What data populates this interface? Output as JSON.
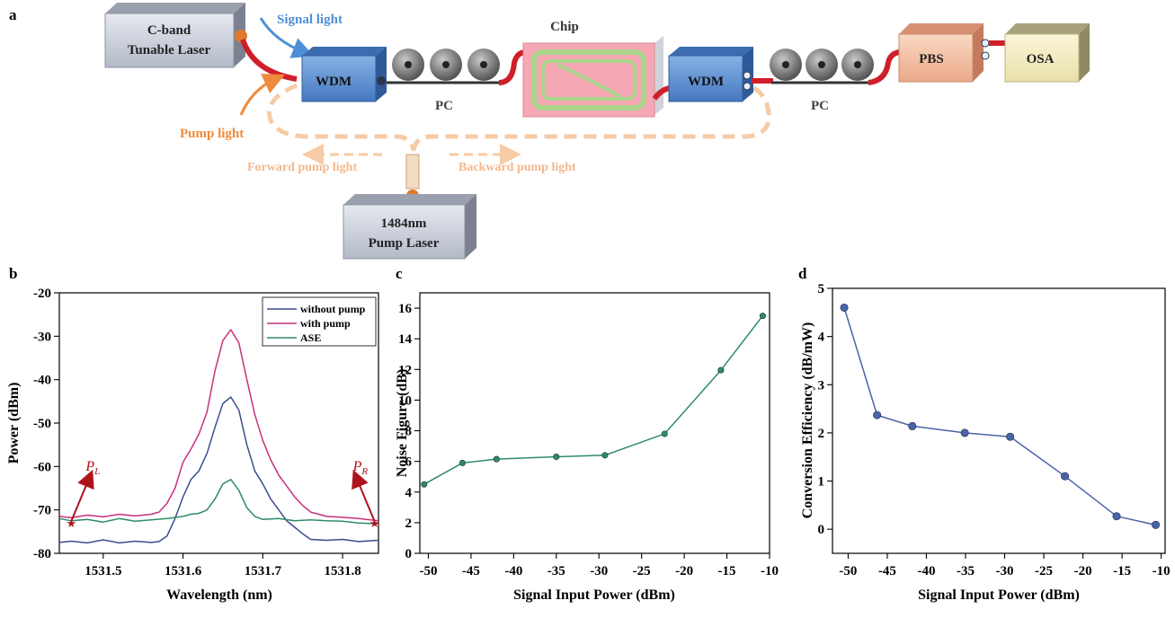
{
  "schematic": {
    "panel_letter": "a",
    "devices": {
      "laser": [
        "C-band",
        "Tunable Laser"
      ],
      "wdm_left": "WDM",
      "wdm_right": "WDM",
      "pc_left": "PC",
      "pc_right": "PC",
      "chip": "Chip",
      "pbs": "PBS",
      "osa": "OSA",
      "pump": [
        "1484nm",
        "Pump Laser"
      ]
    },
    "labels": {
      "signal_light": "Signal light",
      "pump_light": "Pump light",
      "forward": "Forward pump light",
      "backward": "Backward  pump light"
    },
    "colors": {
      "box_gray": "#c7ccd8",
      "wdm_blue": "#5b8fd1",
      "pbs_peach": "#f3c1a4",
      "osa_cream": "#f5efc3",
      "fiber_red": "#d01f2a",
      "signal_arrow": "#4d8fd6",
      "pump_arrow": "#ef8a3c",
      "pump_loop": "#f6cba6",
      "chip_pink": "#f5a8b3",
      "chip_green": "#a9d48c"
    }
  },
  "chart_data": [
    {
      "panel_letter": "b",
      "type": "line",
      "xlabel": "Wavelength (nm)",
      "ylabel": "Power (dBm)",
      "xlim": [
        1531.445,
        1531.845
      ],
      "ylim": [
        -80,
        -20
      ],
      "xticks": [
        1531.5,
        1531.6,
        1531.7,
        1531.8
      ],
      "xtick_labels": [
        "1531.5",
        "1531.6",
        "1531.7",
        "1531.8"
      ],
      "yticks": [
        -80,
        -70,
        -60,
        -50,
        -40,
        -30,
        -20
      ],
      "grid": false,
      "legend_position": "top-right",
      "series": [
        {
          "name": "without pump",
          "color": "#3a4d8f",
          "x": [
            1531.445,
            1531.46,
            1531.48,
            1531.5,
            1531.52,
            1531.54,
            1531.56,
            1531.57,
            1531.58,
            1531.59,
            1531.6,
            1531.61,
            1531.62,
            1531.63,
            1531.64,
            1531.65,
            1531.66,
            1531.67,
            1531.68,
            1531.69,
            1531.7,
            1531.71,
            1531.72,
            1531.73,
            1531.74,
            1531.75,
            1531.76,
            1531.78,
            1531.8,
            1531.82,
            1531.845
          ],
          "y": [
            -77.5,
            -77.2,
            -77.6,
            -76.9,
            -77.6,
            -77.2,
            -77.5,
            -77.3,
            -76.0,
            -72.0,
            -67.0,
            -63.0,
            -61.0,
            -57.0,
            -51.0,
            -45.5,
            -44.0,
            -47.0,
            -55.0,
            -61.0,
            -64.0,
            -67.5,
            -70.0,
            -72.5,
            -74.0,
            -75.5,
            -76.8,
            -77.0,
            -76.8,
            -77.3,
            -77.0
          ]
        },
        {
          "name": "with pump",
          "color": "#c8307c",
          "x": [
            1531.445,
            1531.46,
            1531.48,
            1531.5,
            1531.52,
            1531.54,
            1531.56,
            1531.57,
            1531.58,
            1531.59,
            1531.6,
            1531.61,
            1531.62,
            1531.63,
            1531.64,
            1531.65,
            1531.66,
            1531.67,
            1531.68,
            1531.69,
            1531.7,
            1531.71,
            1531.72,
            1531.73,
            1531.74,
            1531.75,
            1531.76,
            1531.78,
            1531.8,
            1531.82,
            1531.845
          ],
          "y": [
            -71.5,
            -71.8,
            -71.2,
            -71.6,
            -71.0,
            -71.4,
            -71.0,
            -70.5,
            -68.5,
            -65.0,
            -59.0,
            -56.0,
            -52.5,
            -47.5,
            -38.0,
            -31.0,
            -28.5,
            -31.5,
            -40.0,
            -48.0,
            -54.0,
            -58.5,
            -62.0,
            -64.5,
            -67.0,
            -69.0,
            -70.5,
            -71.5,
            -71.7,
            -72.0,
            -72.5
          ]
        },
        {
          "name": "ASE",
          "color": "#2e8b6a",
          "x": [
            1531.445,
            1531.46,
            1531.48,
            1531.5,
            1531.52,
            1531.54,
            1531.56,
            1531.58,
            1531.6,
            1531.61,
            1531.62,
            1531.63,
            1531.64,
            1531.65,
            1531.66,
            1531.67,
            1531.68,
            1531.69,
            1531.7,
            1531.72,
            1531.74,
            1531.76,
            1531.78,
            1531.8,
            1531.82,
            1531.845
          ],
          "y": [
            -72.0,
            -72.5,
            -72.2,
            -72.8,
            -72.0,
            -72.6,
            -72.3,
            -72.0,
            -71.5,
            -71.0,
            -70.8,
            -70.0,
            -67.5,
            -64.0,
            -63.0,
            -65.5,
            -69.5,
            -71.5,
            -72.2,
            -72.0,
            -72.5,
            -72.3,
            -72.5,
            -72.6,
            -73.0,
            -73.2
          ]
        }
      ],
      "annotations": [
        {
          "text": "P",
          "sub": "L",
          "point": [
            1531.46,
            -73
          ]
        },
        {
          "text": "P",
          "sub": "R",
          "point": [
            1531.84,
            -73
          ]
        }
      ]
    },
    {
      "panel_letter": "c",
      "type": "line",
      "xlabel": "Signal Input Power (dBm)",
      "ylabel": "Noise Figure (dB)",
      "xlim": [
        -51,
        -10
      ],
      "ylim": [
        0,
        17
      ],
      "xticks": [
        -50,
        -45,
        -40,
        -35,
        -30,
        -25,
        -20,
        -15,
        -10
      ],
      "yticks": [
        0,
        2,
        4,
        6,
        8,
        10,
        12,
        14,
        16
      ],
      "grid": false,
      "series": [
        {
          "color": "#2e8b6a",
          "x": [
            -50.5,
            -46,
            -42,
            -35,
            -29.3,
            -22.3,
            -15.7,
            -10.8
          ],
          "y": [
            4.5,
            5.9,
            6.15,
            6.3,
            6.4,
            7.8,
            11.95,
            15.5
          ]
        }
      ]
    },
    {
      "panel_letter": "d",
      "type": "line",
      "xlabel": "Signal Input Power (dBm)",
      "ylabel": "Conversion Efficiency (dB/mW)",
      "xlim": [
        -52,
        -9.5
      ],
      "ylim": [
        -0.5,
        5
      ],
      "xticks": [
        -50,
        -45,
        -40,
        -35,
        -30,
        -25,
        -20,
        -15,
        -10
      ],
      "yticks": [
        0,
        1,
        2,
        3,
        4,
        5
      ],
      "grid": false,
      "series": [
        {
          "color": "#4a64a8",
          "x": [
            -50.5,
            -46.3,
            -41.8,
            -35.1,
            -29.3,
            -22.3,
            -15.7,
            -10.7
          ],
          "y": [
            4.6,
            2.37,
            2.14,
            2.0,
            1.92,
            1.1,
            0.27,
            0.09
          ]
        }
      ]
    }
  ]
}
